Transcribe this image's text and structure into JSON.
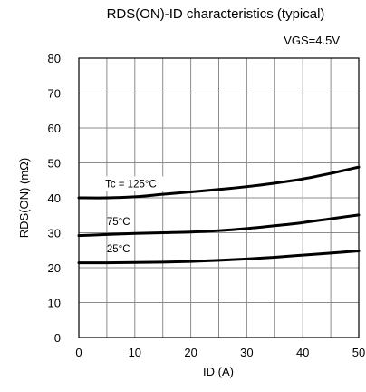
{
  "chart_data": {
    "type": "line",
    "title": "RDS(ON)-ID characteristics (typical)",
    "condition": "VGS=4.5V",
    "xlabel": "ID (A)",
    "ylabel": "RDS(ON)  (mΩ)",
    "xlim": [
      0,
      50
    ],
    "ylim": [
      0,
      80
    ],
    "xticks": [
      0,
      10,
      20,
      30,
      40,
      50
    ],
    "yticks": [
      0,
      10,
      20,
      30,
      40,
      50,
      60,
      70,
      80
    ],
    "grid": true,
    "series": [
      {
        "name": "Tc = 125°C",
        "x": [
          0,
          5,
          10,
          15,
          20,
          25,
          30,
          35,
          40,
          45,
          50
        ],
        "y": [
          40,
          40,
          40.3,
          41,
          41.7,
          42.4,
          43.2,
          44.2,
          45.4,
          47,
          48.8
        ]
      },
      {
        "name": "75°C",
        "x": [
          0,
          5,
          10,
          15,
          20,
          25,
          30,
          35,
          40,
          45,
          50
        ],
        "y": [
          29.2,
          29.5,
          29.8,
          30,
          30.2,
          30.6,
          31.2,
          32,
          32.9,
          34,
          35.1
        ]
      },
      {
        "name": "25°C",
        "x": [
          0,
          5,
          10,
          15,
          20,
          25,
          30,
          35,
          40,
          45,
          50
        ],
        "y": [
          21.4,
          21.4,
          21.5,
          21.6,
          21.8,
          22.1,
          22.5,
          23,
          23.6,
          24.2,
          24.8
        ]
      }
    ]
  }
}
